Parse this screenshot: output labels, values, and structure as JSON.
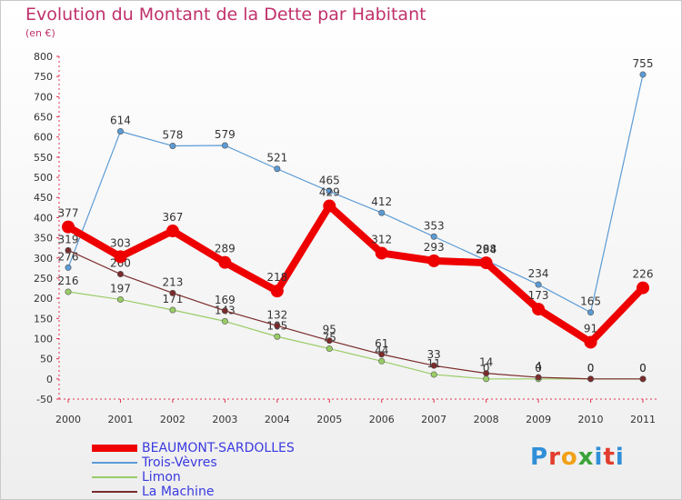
{
  "header": {
    "title": "Evolution du Montant de la Dette par Habitant",
    "subtitle": "(en €)"
  },
  "brand": {
    "text": "Proxiti",
    "letter_colors": [
      "#2f8fd8",
      "#e23d2d",
      "#f2a116",
      "#3aa33a",
      "#2f8fd8",
      "#e23d2d",
      "#2f8fd8"
    ]
  },
  "chart_data": {
    "type": "line",
    "title": "Evolution du Montant de la Dette par Habitant",
    "subtitle": "(en €)",
    "x": [
      "2000",
      "2001",
      "2002",
      "2003",
      "2004",
      "2005",
      "2006",
      "2007",
      "2008",
      "2009",
      "2010",
      "2011"
    ],
    "ylim": [
      -50,
      800
    ],
    "yticks": [
      -50,
      0,
      50,
      100,
      150,
      200,
      250,
      300,
      350,
      400,
      450,
      500,
      550,
      600,
      650,
      700,
      750,
      800
    ],
    "grid": false,
    "legend": "bottom-left",
    "series": [
      {
        "name": "Trois-Vèvres",
        "color": "#5b9bd5",
        "emphasis": false,
        "show_labels": true,
        "values": [
          276,
          614,
          578,
          579,
          521,
          465,
          412,
          353,
          294,
          234,
          165,
          755
        ],
        "labels": [
          "276",
          "614",
          "578",
          "579",
          "521",
          "465",
          "412",
          "353",
          "294",
          "234",
          "165",
          "755"
        ]
      },
      {
        "name": "Limon",
        "color": "#99cc66",
        "emphasis": false,
        "show_labels": true,
        "values": [
          216,
          197,
          171,
          143,
          105,
          75,
          44,
          11,
          0,
          0,
          0,
          0
        ],
        "labels": [
          "216",
          "197",
          "171",
          "143",
          "105",
          "75",
          "44",
          "11",
          "0",
          "0",
          "0",
          "0"
        ]
      },
      {
        "name": "La Machine",
        "color": "#7a2b2b",
        "emphasis": false,
        "show_labels": true,
        "values": [
          319,
          260,
          213,
          169,
          132,
          95,
          61,
          33,
          14,
          4,
          0,
          0
        ],
        "labels": [
          "319",
          "260",
          "213",
          "169",
          "132",
          "95",
          "61",
          "33",
          "14",
          "4",
          "0",
          "0"
        ]
      },
      {
        "name": "BEAUMONT-SARDOLLES",
        "color": "#ee0000",
        "emphasis": true,
        "show_labels": true,
        "values": [
          377,
          303,
          367,
          289,
          218,
          429,
          312,
          293,
          288,
          173,
          91,
          226
        ],
        "labels": [
          "377",
          "303",
          "367",
          "289",
          "218",
          "429",
          "312",
          "293",
          "288",
          "173",
          "91",
          "226"
        ]
      }
    ],
    "legend_order": [
      "BEAUMONT-SARDOLLES",
      "Trois-Vèvres",
      "Limon",
      "La Machine"
    ]
  }
}
